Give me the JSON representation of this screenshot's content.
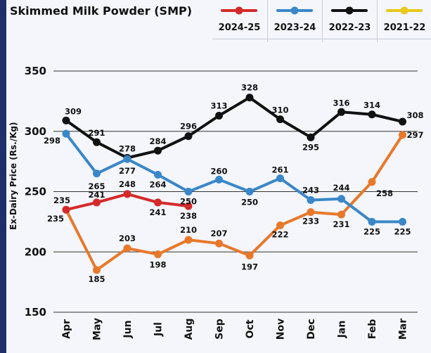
{
  "chart_data": {
    "type": "line",
    "title": "Skimmed Milk Powder (SMP)",
    "ylabel": "Ex-Dairy Price (Rs./Kg)",
    "xlabel": "",
    "ylim": [
      150,
      350
    ],
    "yticks": [
      150,
      200,
      250,
      300,
      350
    ],
    "grid": true,
    "legend_position": "top-right",
    "categories": [
      "Apr",
      "May",
      "Jun",
      "Jul",
      "Aug",
      "Sep",
      "Oct",
      "Nov",
      "Dec",
      "Jan",
      "Feb",
      "Mar"
    ],
    "series": [
      {
        "name": "2024-25",
        "color": "#d42a2a",
        "values": [
          235,
          241,
          248,
          241,
          238,
          null,
          null,
          null,
          null,
          null,
          null,
          null
        ],
        "labels": [
          "235",
          "241",
          "248",
          "241",
          "238",
          "",
          "",
          "",
          "",
          "",
          "",
          ""
        ]
      },
      {
        "name": "2023-24",
        "color": "#3a87c8",
        "values": [
          298,
          265,
          277,
          264,
          250,
          260,
          250,
          261,
          243,
          244,
          225,
          225
        ],
        "labels": [
          "298",
          "265",
          "277",
          "264",
          "250",
          "260",
          "250",
          "261",
          "243",
          "244",
          "225",
          "225"
        ]
      },
      {
        "name": "2022-23",
        "color": "#111111",
        "values": [
          309,
          291,
          278,
          284,
          296,
          313,
          328,
          310,
          295,
          316,
          314,
          308
        ],
        "labels": [
          "309",
          "291",
          "278",
          "284",
          "296",
          "313",
          "328",
          "310",
          "295",
          "316",
          "314",
          "308"
        ]
      },
      {
        "name": "2021-22",
        "color": "#e8782a",
        "legend_color": "#e8c81a",
        "values": [
          235,
          185,
          203,
          198,
          210,
          207,
          197,
          222,
          233,
          231,
          258,
          297
        ],
        "labels": [
          "235",
          "185",
          "203",
          "198",
          "210",
          "207",
          "197",
          "222",
          "233",
          "231",
          "258",
          "297"
        ]
      }
    ]
  }
}
